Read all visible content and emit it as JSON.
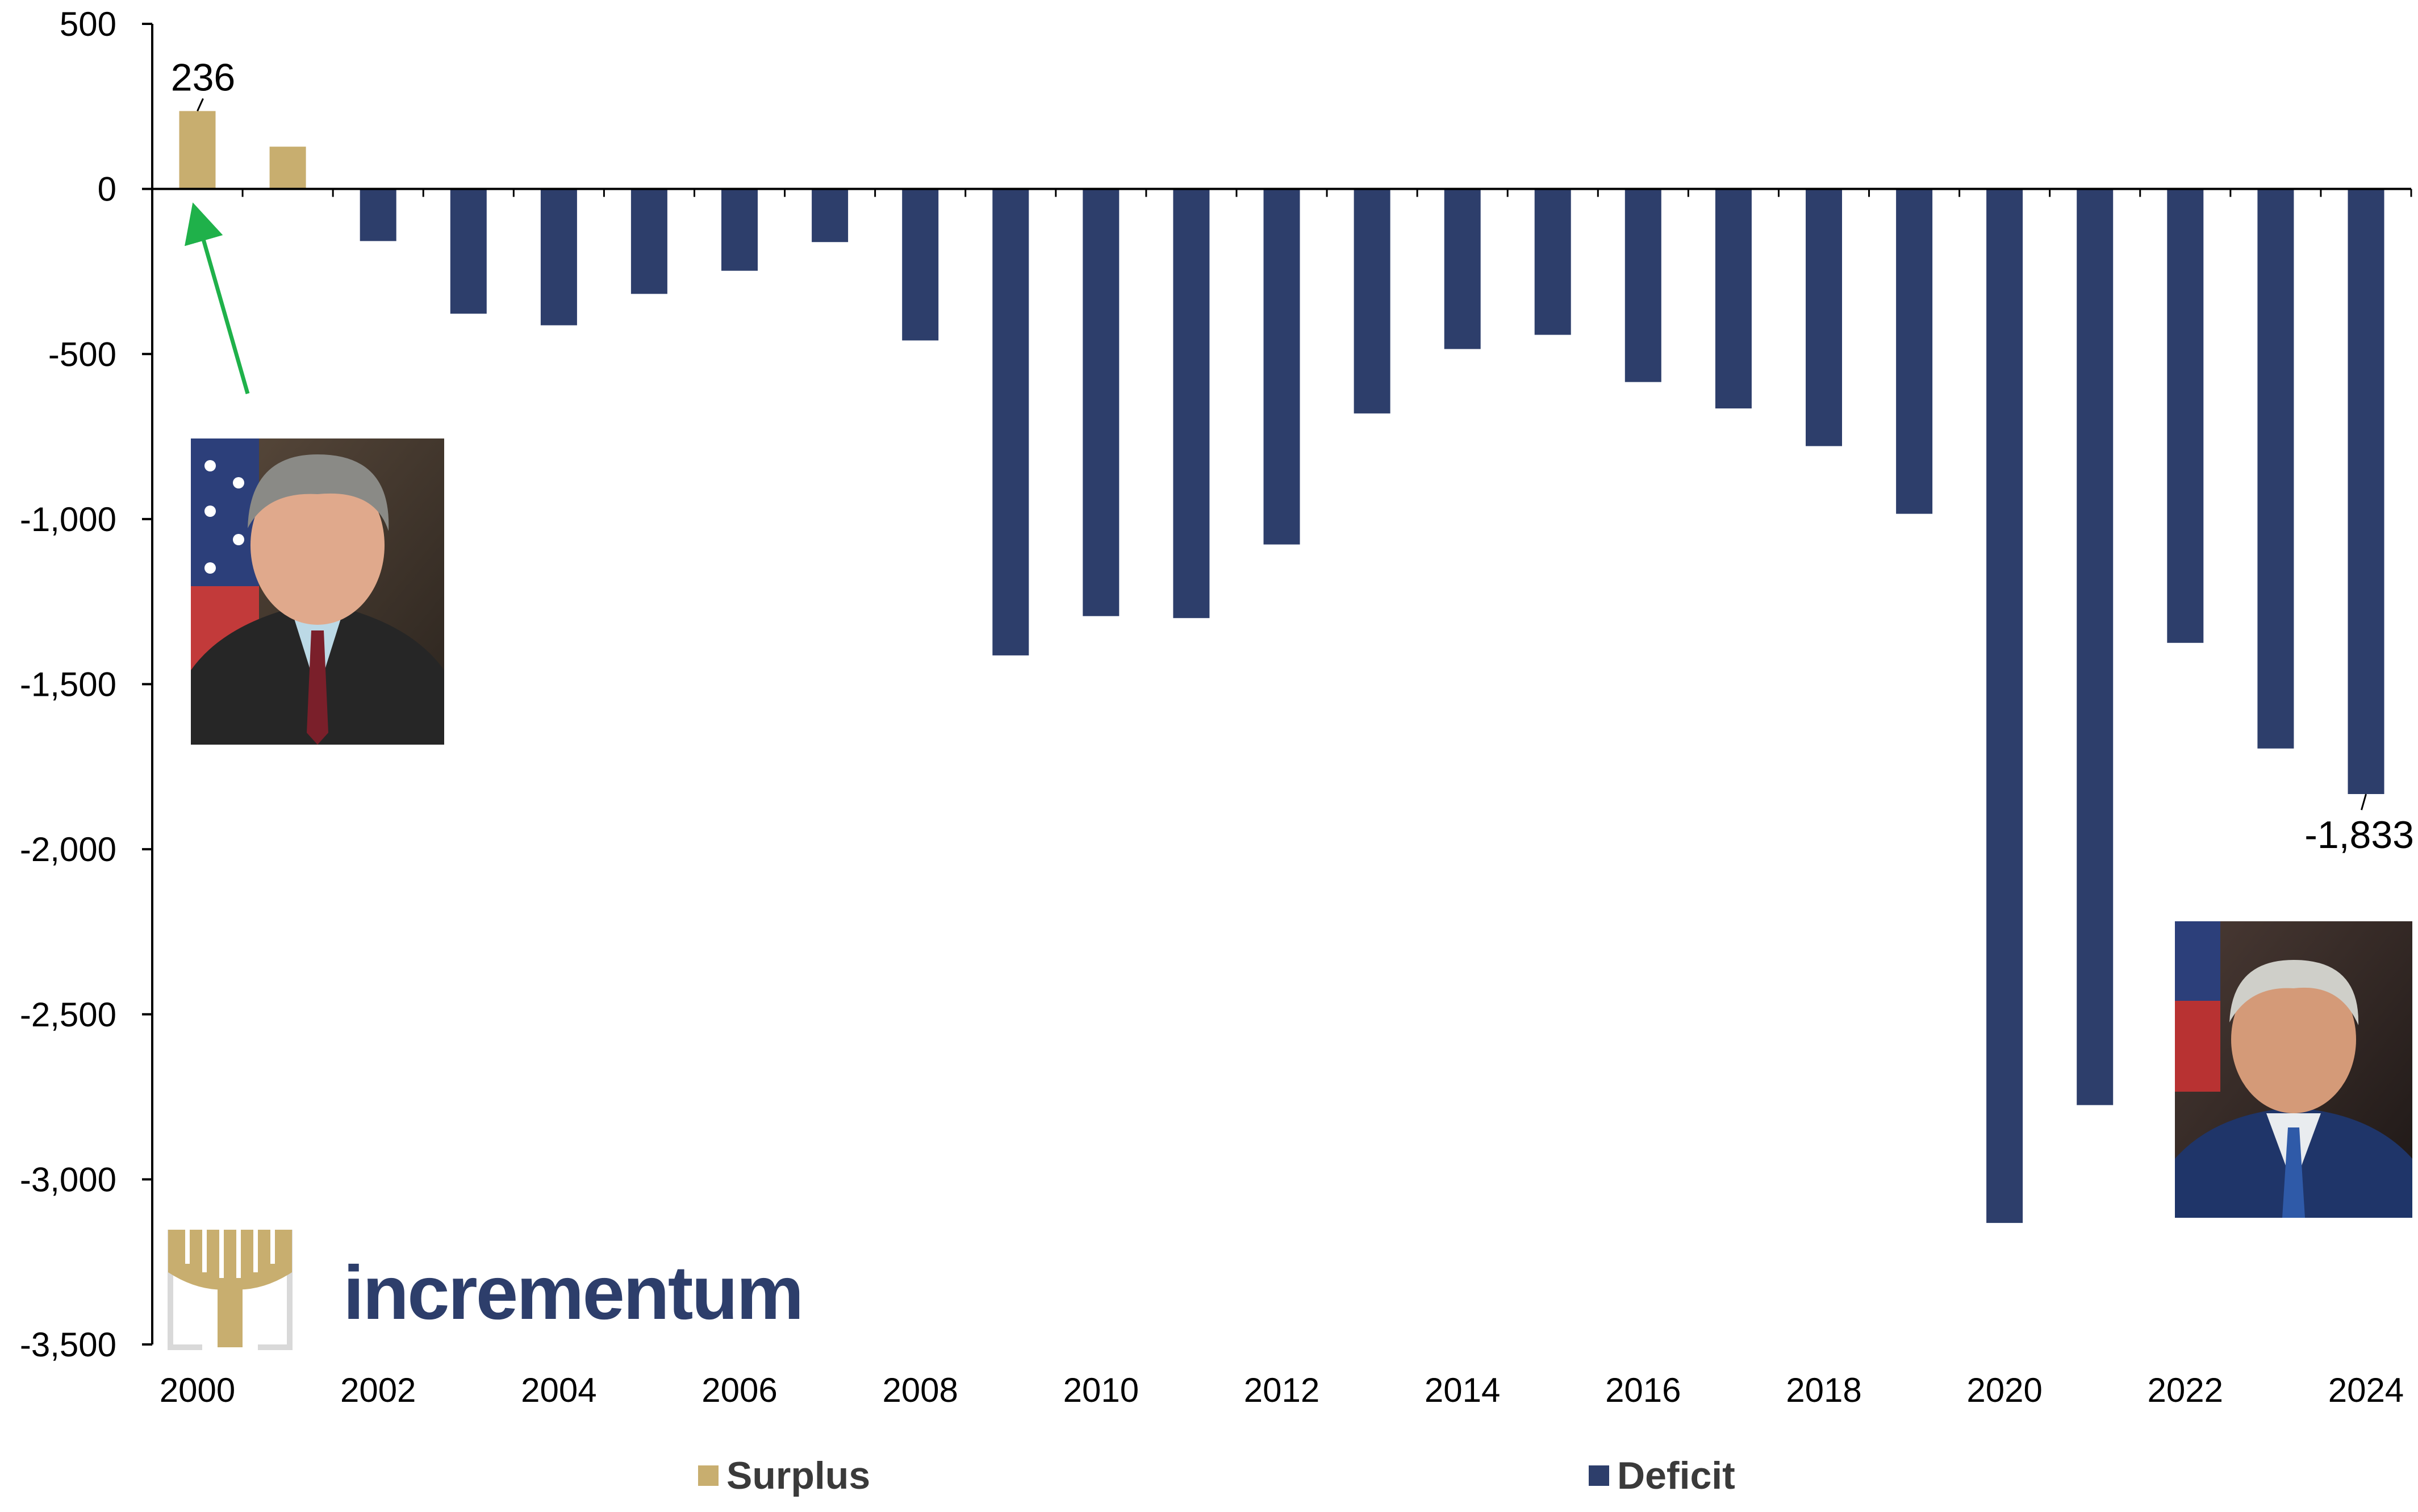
{
  "chart_data": {
    "type": "bar",
    "categories": [
      2000,
      2001,
      2002,
      2003,
      2004,
      2005,
      2006,
      2007,
      2008,
      2009,
      2010,
      2011,
      2012,
      2013,
      2014,
      2015,
      2016,
      2017,
      2018,
      2019,
      2020,
      2021,
      2022,
      2023,
      2024
    ],
    "values": [
      236,
      128,
      -158,
      -378,
      -413,
      -318,
      -248,
      -161,
      -459,
      -1413,
      -1294,
      -1300,
      -1077,
      -680,
      -485,
      -442,
      -585,
      -665,
      -779,
      -984,
      -3132,
      -2775,
      -1375,
      -1695,
      -1833
    ],
    "x_tick_labels": [
      "2000",
      "2002",
      "2004",
      "2006",
      "2008",
      "2010",
      "2012",
      "2014",
      "2016",
      "2018",
      "2020",
      "2022",
      "2024"
    ],
    "y_tick_labels": [
      "500",
      "0",
      "-500",
      "-1,000",
      "-1,500",
      "-2,000",
      "-2,500",
      "-3,000",
      "-3,500"
    ],
    "ylim": [
      -3500,
      500
    ],
    "ytick_step": 500,
    "grid": false,
    "data_labels": [
      {
        "year": 2000,
        "text": "236"
      },
      {
        "year": 2024,
        "text": "-1,833"
      }
    ],
    "legend": {
      "position": "bottom",
      "entries": [
        {
          "label": "Surplus",
          "color": "#c8ae6f"
        },
        {
          "label": "Deficit",
          "color": "#2d3e6b"
        }
      ]
    },
    "colors": {
      "surplus": "#c8ae6f",
      "deficit": "#2d3e6b",
      "arrow": "#1fb14a"
    },
    "title": "",
    "xlabel": "",
    "ylabel": ""
  },
  "brand": {
    "name": "incrementum",
    "icon": "tree-logo-icon"
  },
  "photos": [
    {
      "name": "photo-2000-president",
      "icon": "portrait-photo"
    },
    {
      "name": "photo-2024-president",
      "icon": "portrait-photo"
    }
  ]
}
